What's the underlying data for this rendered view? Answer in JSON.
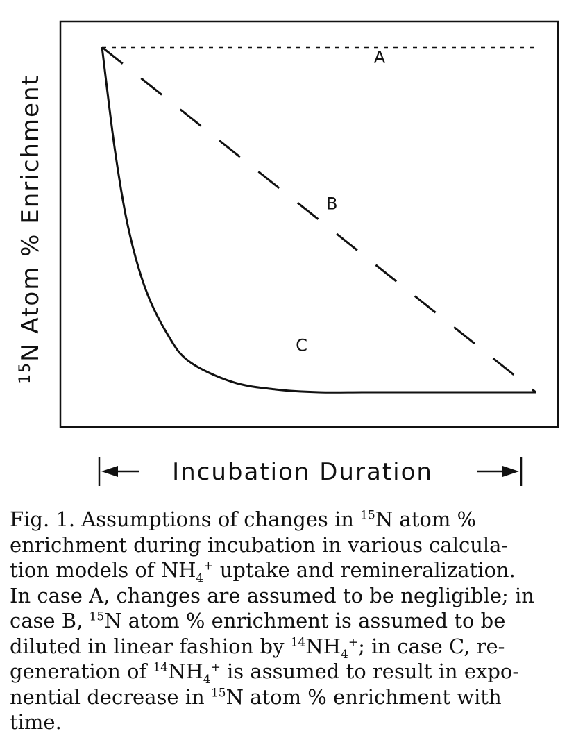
{
  "chart_data": {
    "type": "line",
    "title": "",
    "xlabel": "Incubation Duration",
    "ylabel": "15N Atom % Enrichment",
    "ylabel_parts": {
      "sup": "15",
      "main": "N Atom % Enrichment"
    },
    "x_ticks_shown": false,
    "y_ticks_shown": false,
    "grid": false,
    "x_range": [
      0,
      1
    ],
    "y_range": [
      0,
      1
    ],
    "series": [
      {
        "name": "A",
        "line_style": "dotted",
        "x": [
          0,
          1
        ],
        "y": [
          1.0,
          1.0
        ]
      },
      {
        "name": "B",
        "line_style": "long-dash",
        "x": [
          0,
          1
        ],
        "y": [
          1.0,
          0.0
        ]
      },
      {
        "name": "C",
        "line_style": "solid",
        "x": [
          0.0,
          0.03,
          0.06,
          0.1,
          0.15,
          0.2,
          0.3,
          0.4,
          0.5,
          0.6,
          0.7,
          0.8,
          0.9,
          1.0
        ],
        "y": [
          1.0,
          0.7,
          0.48,
          0.3,
          0.17,
          0.09,
          0.03,
          0.008,
          0.0,
          0.0,
          0.0,
          0.0,
          0.0,
          0.0
        ]
      }
    ]
  },
  "colors": {
    "ink": "#111111",
    "background": "#ffffff"
  },
  "caption": {
    "lines": [
      [
        "Fig. 1.  Assumptions of changes in ",
        {
          "sup": "15"
        },
        "N atom %"
      ],
      [
        "enrichment during incubation in various calcula-"
      ],
      [
        "tion models of NH",
        {
          "sub": "4"
        },
        {
          "sup": "+"
        },
        " uptake and remineralization."
      ],
      [
        "In case A, changes are assumed to be negligible; in"
      ],
      [
        "case B, ",
        {
          "sup": "15"
        },
        "N atom % enrichment is assumed to be"
      ],
      [
        "diluted in linear fashion by ",
        {
          "sup": "14"
        },
        "NH",
        {
          "sub": "4"
        },
        {
          "sup": "+"
        },
        "; in case C, re-"
      ],
      [
        "generation of ",
        {
          "sup": "14"
        },
        "NH",
        {
          "sub": "4"
        },
        {
          "sup": "+"
        },
        " is assumed to result in expo-"
      ],
      [
        "nential decrease in ",
        {
          "sup": "15"
        },
        "N atom % enrichment with"
      ],
      [
        "time."
      ]
    ]
  }
}
